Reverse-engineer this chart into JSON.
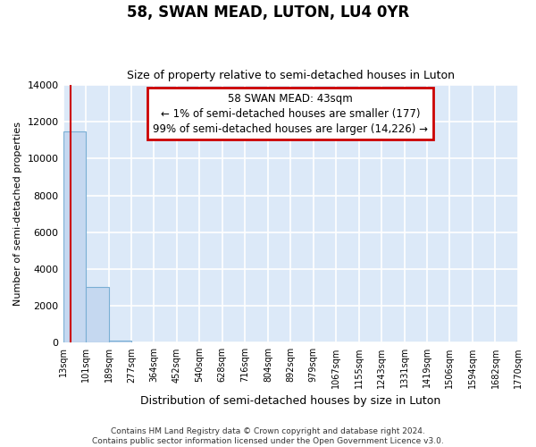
{
  "title": "58, SWAN MEAD, LUTON, LU4 0YR",
  "subtitle": "Size of property relative to semi-detached houses in Luton",
  "xlabel": "Distribution of semi-detached houses by size in Luton",
  "ylabel": "Number of semi-detached properties",
  "bar_values": [
    11450,
    3020,
    130,
    0,
    0,
    0,
    0,
    0,
    0,
    0,
    0,
    0,
    0,
    0,
    0,
    0,
    0,
    0,
    0,
    0
  ],
  "bin_edges": [
    13,
    101,
    189,
    277,
    364,
    452,
    540,
    628,
    716,
    804,
    892,
    979,
    1067,
    1155,
    1243,
    1331,
    1419,
    1506,
    1594,
    1682,
    1770
  ],
  "tick_labels": [
    "13sqm",
    "101sqm",
    "189sqm",
    "277sqm",
    "364sqm",
    "452sqm",
    "540sqm",
    "628sqm",
    "716sqm",
    "804sqm",
    "892sqm",
    "979sqm",
    "1067sqm",
    "1155sqm",
    "1243sqm",
    "1331sqm",
    "1419sqm",
    "1506sqm",
    "1594sqm",
    "1682sqm",
    "1770sqm"
  ],
  "ylim": [
    0,
    14000
  ],
  "yticks": [
    0,
    2000,
    4000,
    6000,
    8000,
    10000,
    12000,
    14000
  ],
  "bar_color": "#c5d8f0",
  "bar_edge_color": "#7aafd4",
  "property_sqm": 43,
  "property_line_color": "#cc0000",
  "annotation_text_line1": "58 SWAN MEAD: 43sqm",
  "annotation_text_line2": "← 1% of semi-detached houses are smaller (177)",
  "annotation_text_line3": "99% of semi-detached houses are larger (14,226) →",
  "annotation_box_color": "#cc0000",
  "footer_line1": "Contains HM Land Registry data © Crown copyright and database right 2024.",
  "footer_line2": "Contains public sector information licensed under the Open Government Licence v3.0.",
  "fig_bg_color": "#ffffff",
  "plot_bg_color": "#dce9f8",
  "grid_color": "#ffffff",
  "figsize": [
    6.0,
    5.0
  ],
  "dpi": 100
}
